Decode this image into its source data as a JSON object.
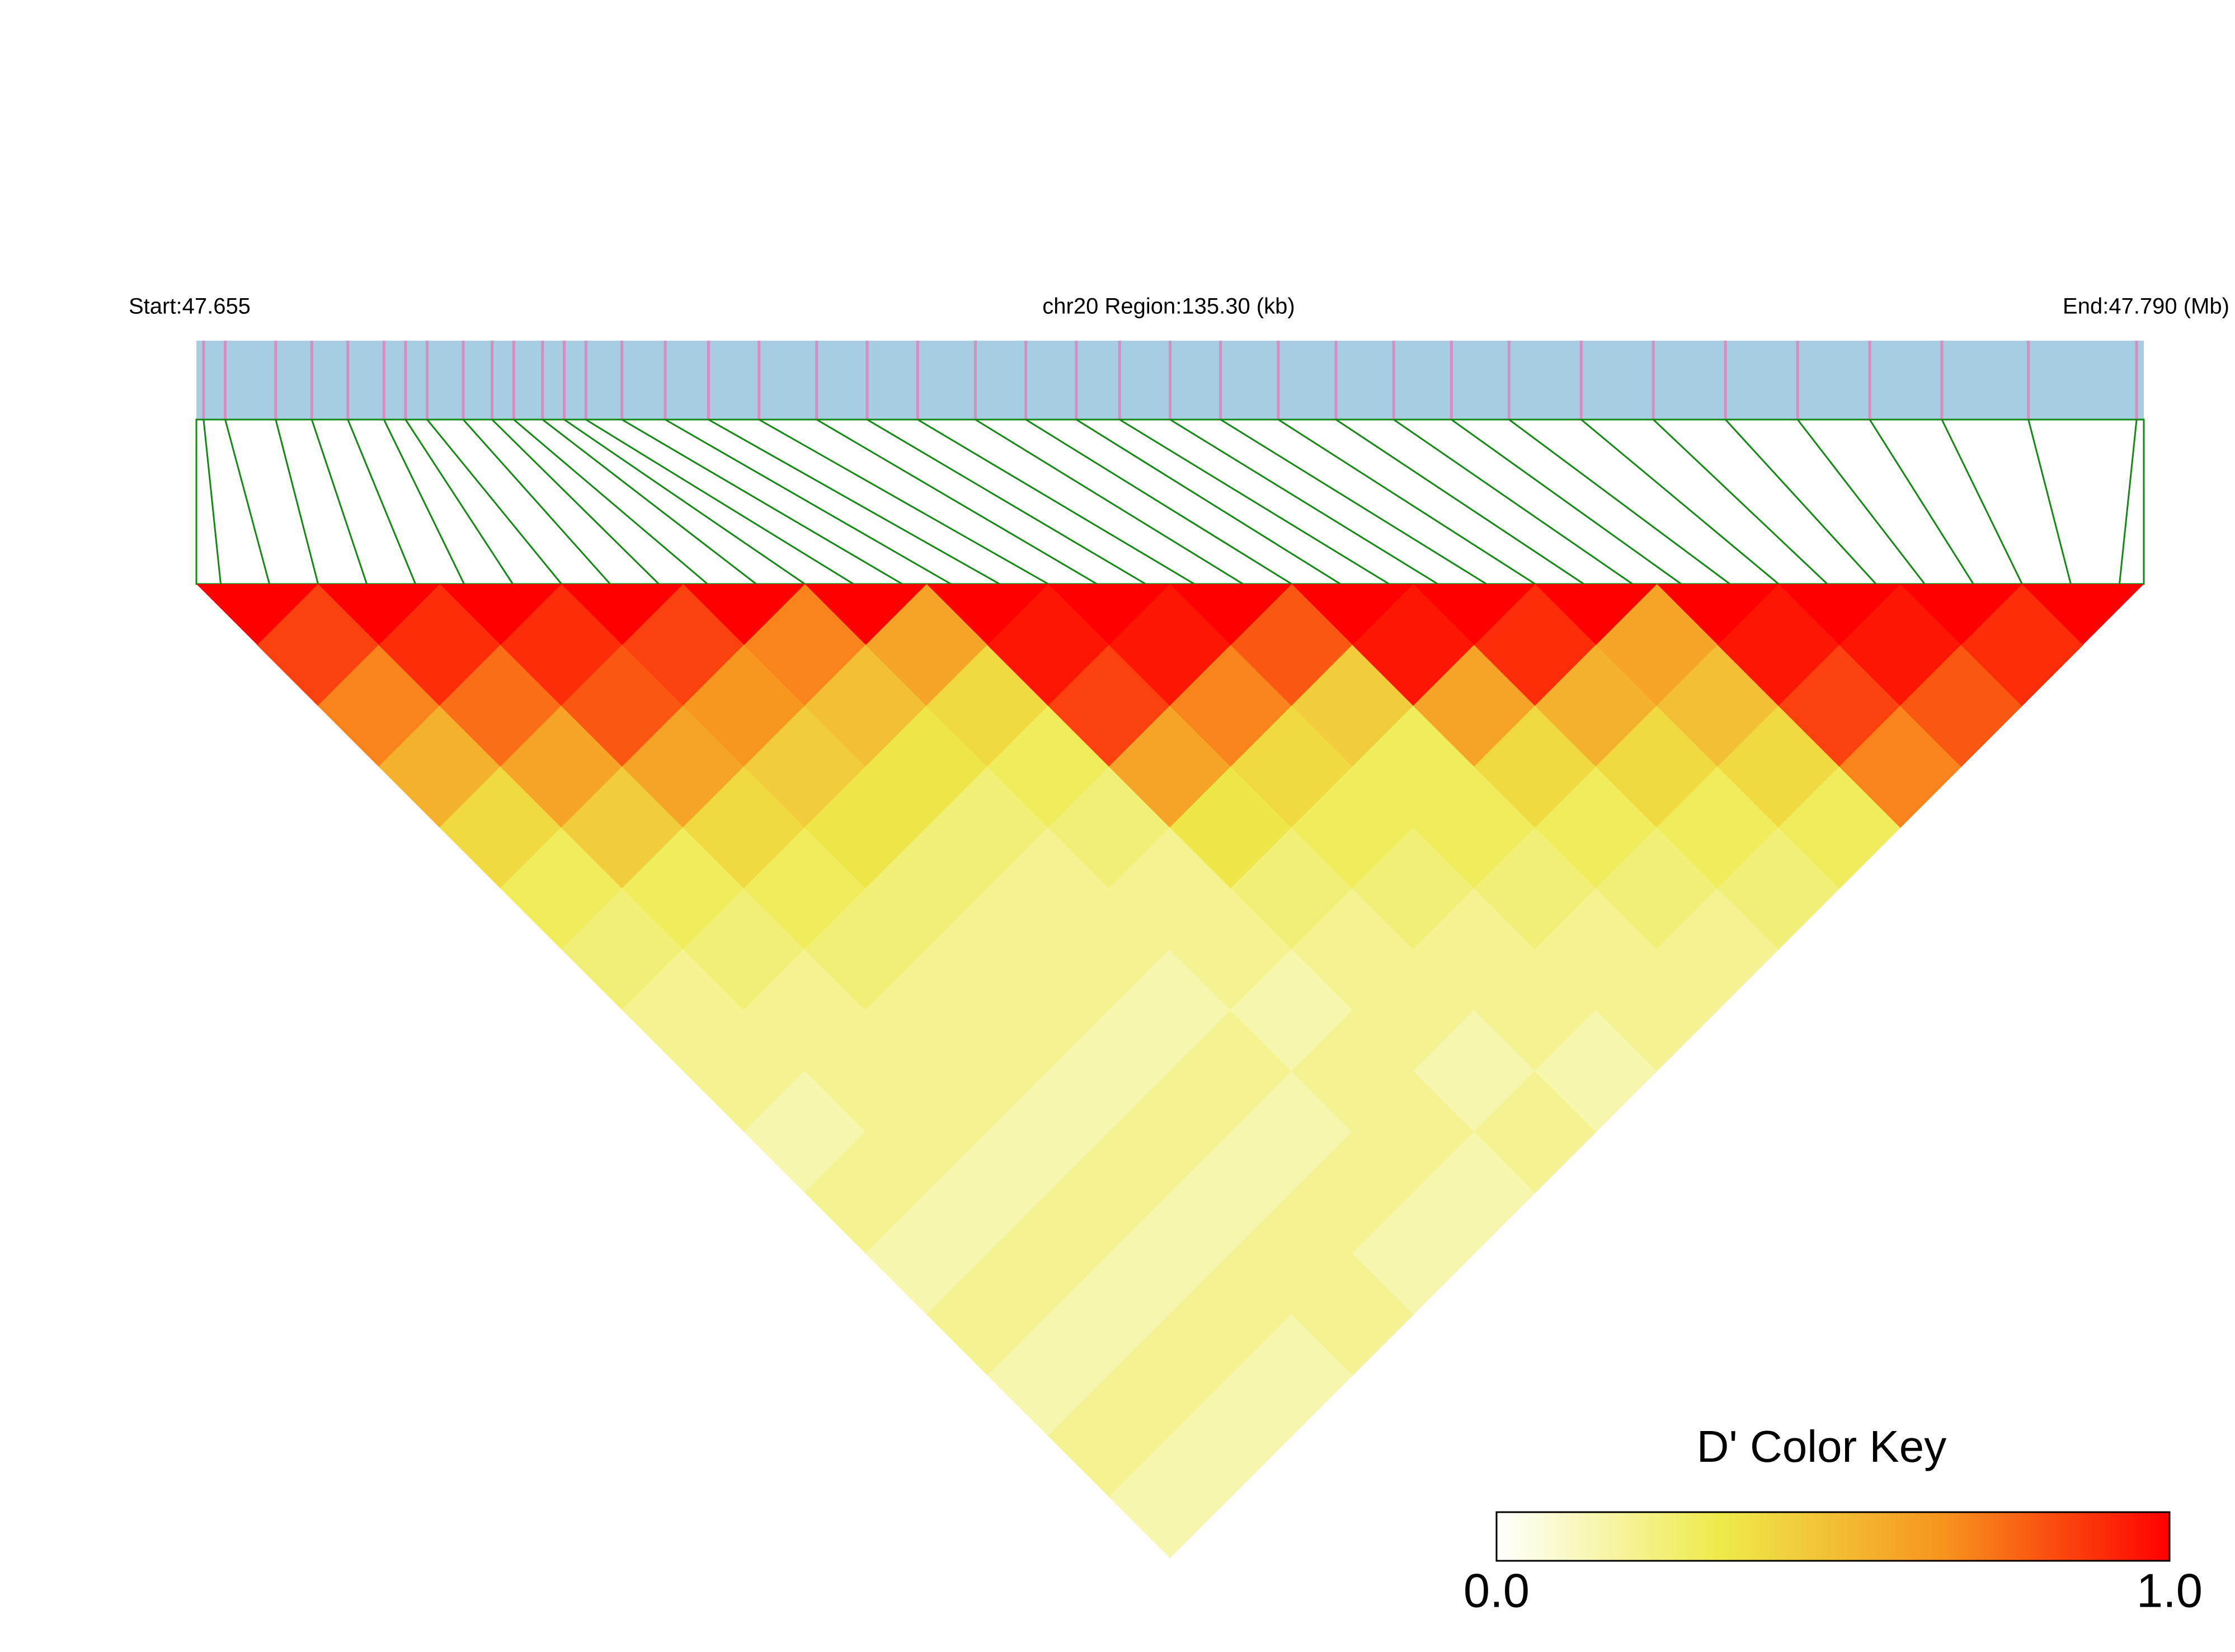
{
  "chart_data": {
    "type": "ld-heatmap",
    "start_label": "Start:47.655",
    "region_label": "chr20 Region:135.30 (kb)",
    "end_label": "End:47.790 (Mb)",
    "xlim": [
      47.655,
      47.79
    ],
    "snp_positions": [
      47.6555,
      47.657,
      47.6605,
      47.663,
      47.6655,
      47.668,
      47.6695,
      47.671,
      47.6735,
      47.6755,
      47.677,
      47.679,
      47.6805,
      47.682,
      47.6845,
      47.6875,
      47.6905,
      47.694,
      47.698,
      47.7015,
      47.705,
      47.709,
      47.7125,
      47.716,
      47.719,
      47.7225,
      47.726,
      47.73,
      47.734,
      47.738,
      47.742,
      47.746,
      47.751,
      47.756,
      47.761,
      47.766,
      47.771,
      47.776,
      47.782,
      47.7895
    ],
    "bar_color": "#a6cde2",
    "snp_color": "#d98cc0",
    "link_color": "#138a13",
    "values": [
      [
        0.85,
        0.7,
        0.55,
        0.4,
        0.3,
        0.25,
        0.2,
        0.2,
        0.15,
        0.2,
        0.15,
        0.2,
        0.15,
        0.2,
        0.15
      ],
      [
        0.9,
        0.75,
        0.6,
        0.45,
        0.3,
        0.25,
        0.2,
        0.2,
        0.2,
        0.15,
        0.2,
        0.15,
        0.2,
        0.15
      ],
      [
        0.9,
        0.8,
        0.6,
        0.4,
        0.3,
        0.25,
        0.2,
        0.2,
        0.15,
        0.2,
        0.15,
        0.2,
        0.15
      ],
      [
        0.85,
        0.65,
        0.45,
        0.35,
        0.25,
        0.2,
        0.2,
        0.15,
        0.2,
        0.15,
        0.2,
        0.2
      ],
      [
        0.7,
        0.5,
        0.35,
        0.25,
        0.2,
        0.2,
        0.15,
        0.2,
        0.15,
        0.2,
        0.15
      ],
      [
        0.6,
        0.4,
        0.3,
        0.25,
        0.2,
        0.2,
        0.15,
        0.2,
        0.2,
        0.15
      ],
      [
        0.95,
        0.85,
        0.6,
        0.35,
        0.25,
        0.2,
        0.2,
        0.15,
        0.2
      ],
      [
        0.95,
        0.7,
        0.4,
        0.3,
        0.25,
        0.2,
        0.2,
        0.15
      ],
      [
        0.8,
        0.45,
        0.3,
        0.3,
        0.25,
        0.2,
        0.2
      ],
      [
        0.95,
        0.6,
        0.4,
        0.3,
        0.25,
        0.2
      ],
      [
        0.9,
        0.55,
        0.4,
        0.3,
        0.25
      ],
      [
        0.6,
        0.5,
        0.4,
        0.3
      ],
      [
        0.95,
        0.85,
        0.7
      ],
      [
        0.95,
        0.8
      ],
      [
        0.9
      ]
    ],
    "colors": [
      "#ffffff",
      "#eeea4a",
      "#f7931e",
      "#ff0000"
    ],
    "color_key_title": "D' Color Key",
    "color_key_lim": [
      0,
      1
    ],
    "color_key_ticks": [
      {
        "value": 0,
        "label": "0.0"
      },
      {
        "value": 1,
        "label": "1.0"
      }
    ]
  }
}
